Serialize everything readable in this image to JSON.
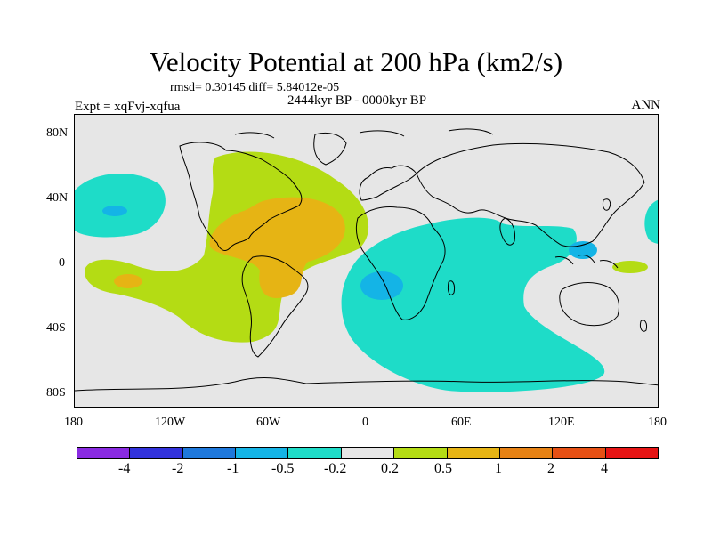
{
  "title": "Velocity Potential at 200 hPa (km2/s)",
  "stats": "rmsd= 0.30145 diff= 5.84012e-05",
  "experiment": "Expt = xqFvj-xqfua",
  "period": "2444kyr BP - 0000kyr BP",
  "season": "ANN",
  "lat_labels": [
    "80N",
    "40N",
    "0",
    "40S",
    "80S"
  ],
  "lon_labels": [
    "180",
    "120W",
    "60W",
    "0",
    "60E",
    "120E",
    "180"
  ],
  "colorbar": {
    "labels": [
      "-4",
      "-2",
      "-1",
      "-0.5",
      "-0.2",
      "0.2",
      "0.5",
      "1",
      "2",
      "4"
    ],
    "colors": [
      "#8a2be2",
      "#3232dc",
      "#1e78dc",
      "#14b4e6",
      "#1edcc8",
      "#e6e6e6",
      "#b4dc14",
      "#e6b414",
      "#e68214",
      "#e65014",
      "#e61414"
    ]
  },
  "map_colors": {
    "background": "#e6e6e6",
    "negative_light": "#1edcc8",
    "negative_med": "#14b4e6",
    "positive_light": "#b4dc14",
    "positive_med": "#e6b414"
  }
}
